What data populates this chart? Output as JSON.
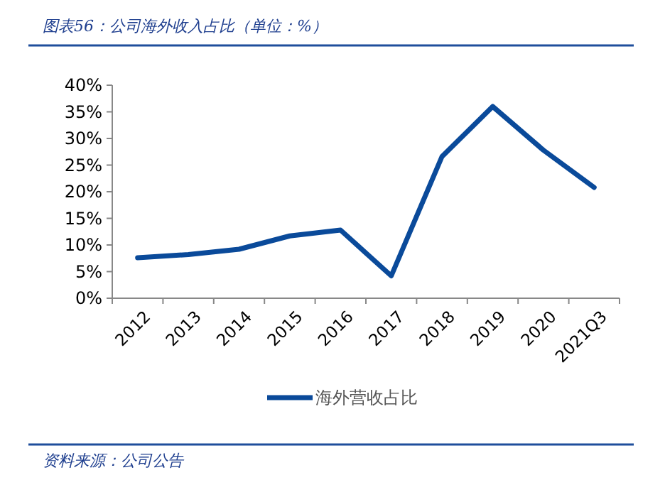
{
  "chart_data": {
    "type": "line",
    "title": "图表56：公司海外收入占比（单位：%）",
    "categories": [
      "2012",
      "2013",
      "2014",
      "2015",
      "2016",
      "2017",
      "2018",
      "2019",
      "2020",
      "2021Q3"
    ],
    "series": [
      {
        "name": "海外营收占比",
        "color": "#0a4a9a",
        "values": [
          7.6,
          8.2,
          9.2,
          11.7,
          12.8,
          4.2,
          26.6,
          36.0,
          27.8,
          20.8
        ]
      }
    ],
    "ylim": [
      0,
      40
    ],
    "yticks": [
      {
        "value": 0,
        "label": "0%"
      },
      {
        "value": 5,
        "label": "5%"
      },
      {
        "value": 10,
        "label": "10%"
      },
      {
        "value": 15,
        "label": "15%"
      },
      {
        "value": 20,
        "label": "20%"
      },
      {
        "value": 25,
        "label": "25%"
      },
      {
        "value": 30,
        "label": "30%"
      },
      {
        "value": 35,
        "label": "35%"
      },
      {
        "value": 40,
        "label": "40%"
      }
    ],
    "grid": false,
    "legend": "bottom",
    "marker": "none",
    "line_style": "solid",
    "annotations": [
      "资料来源：公司公告"
    ]
  }
}
